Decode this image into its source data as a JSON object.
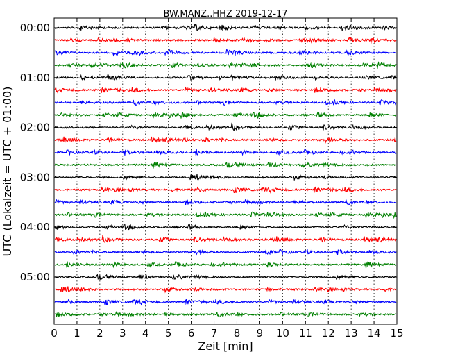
{
  "chart_data": {
    "type": "line",
    "title": "BW.MANZ..HHZ 2019-12-17",
    "xlabel": "Zeit  [min]",
    "ylabel": "UTC (Lokalzeit = UTC + 01:00)",
    "xlim": [
      0,
      15
    ],
    "x_ticks": [
      0,
      1,
      2,
      3,
      4,
      5,
      6,
      7,
      8,
      9,
      10,
      11,
      12,
      13,
      14,
      15
    ],
    "y_tick_labels": [
      "00:00",
      "01:00",
      "02:00",
      "03:00",
      "04:00",
      "05:00"
    ],
    "grid": {
      "vertical": true,
      "style": "dotted"
    },
    "trace_interval_minutes": 15,
    "trace_colors": [
      "#000000",
      "#ff0000",
      "#0000ff",
      "#008000"
    ],
    "traces": [
      {
        "start": "00:00",
        "color": "#000000"
      },
      {
        "start": "00:15",
        "color": "#ff0000"
      },
      {
        "start": "00:30",
        "color": "#0000ff"
      },
      {
        "start": "00:45",
        "color": "#008000"
      },
      {
        "start": "01:00",
        "color": "#000000"
      },
      {
        "start": "01:15",
        "color": "#ff0000"
      },
      {
        "start": "01:30",
        "color": "#0000ff"
      },
      {
        "start": "01:45",
        "color": "#008000"
      },
      {
        "start": "02:00",
        "color": "#000000"
      },
      {
        "start": "02:15",
        "color": "#ff0000"
      },
      {
        "start": "02:30",
        "color": "#0000ff"
      },
      {
        "start": "02:45",
        "color": "#008000"
      },
      {
        "start": "03:00",
        "color": "#000000"
      },
      {
        "start": "03:15",
        "color": "#ff0000"
      },
      {
        "start": "03:30",
        "color": "#0000ff"
      },
      {
        "start": "03:45",
        "color": "#008000"
      },
      {
        "start": "04:00",
        "color": "#000000"
      },
      {
        "start": "04:15",
        "color": "#ff0000"
      },
      {
        "start": "04:30",
        "color": "#0000ff"
      },
      {
        "start": "04:45",
        "color": "#008000"
      },
      {
        "start": "05:00",
        "color": "#000000"
      },
      {
        "start": "05:15",
        "color": "#ff0000"
      },
      {
        "start": "05:30",
        "color": "#0000ff"
      },
      {
        "start": "05:45",
        "color": "#008000"
      }
    ]
  }
}
